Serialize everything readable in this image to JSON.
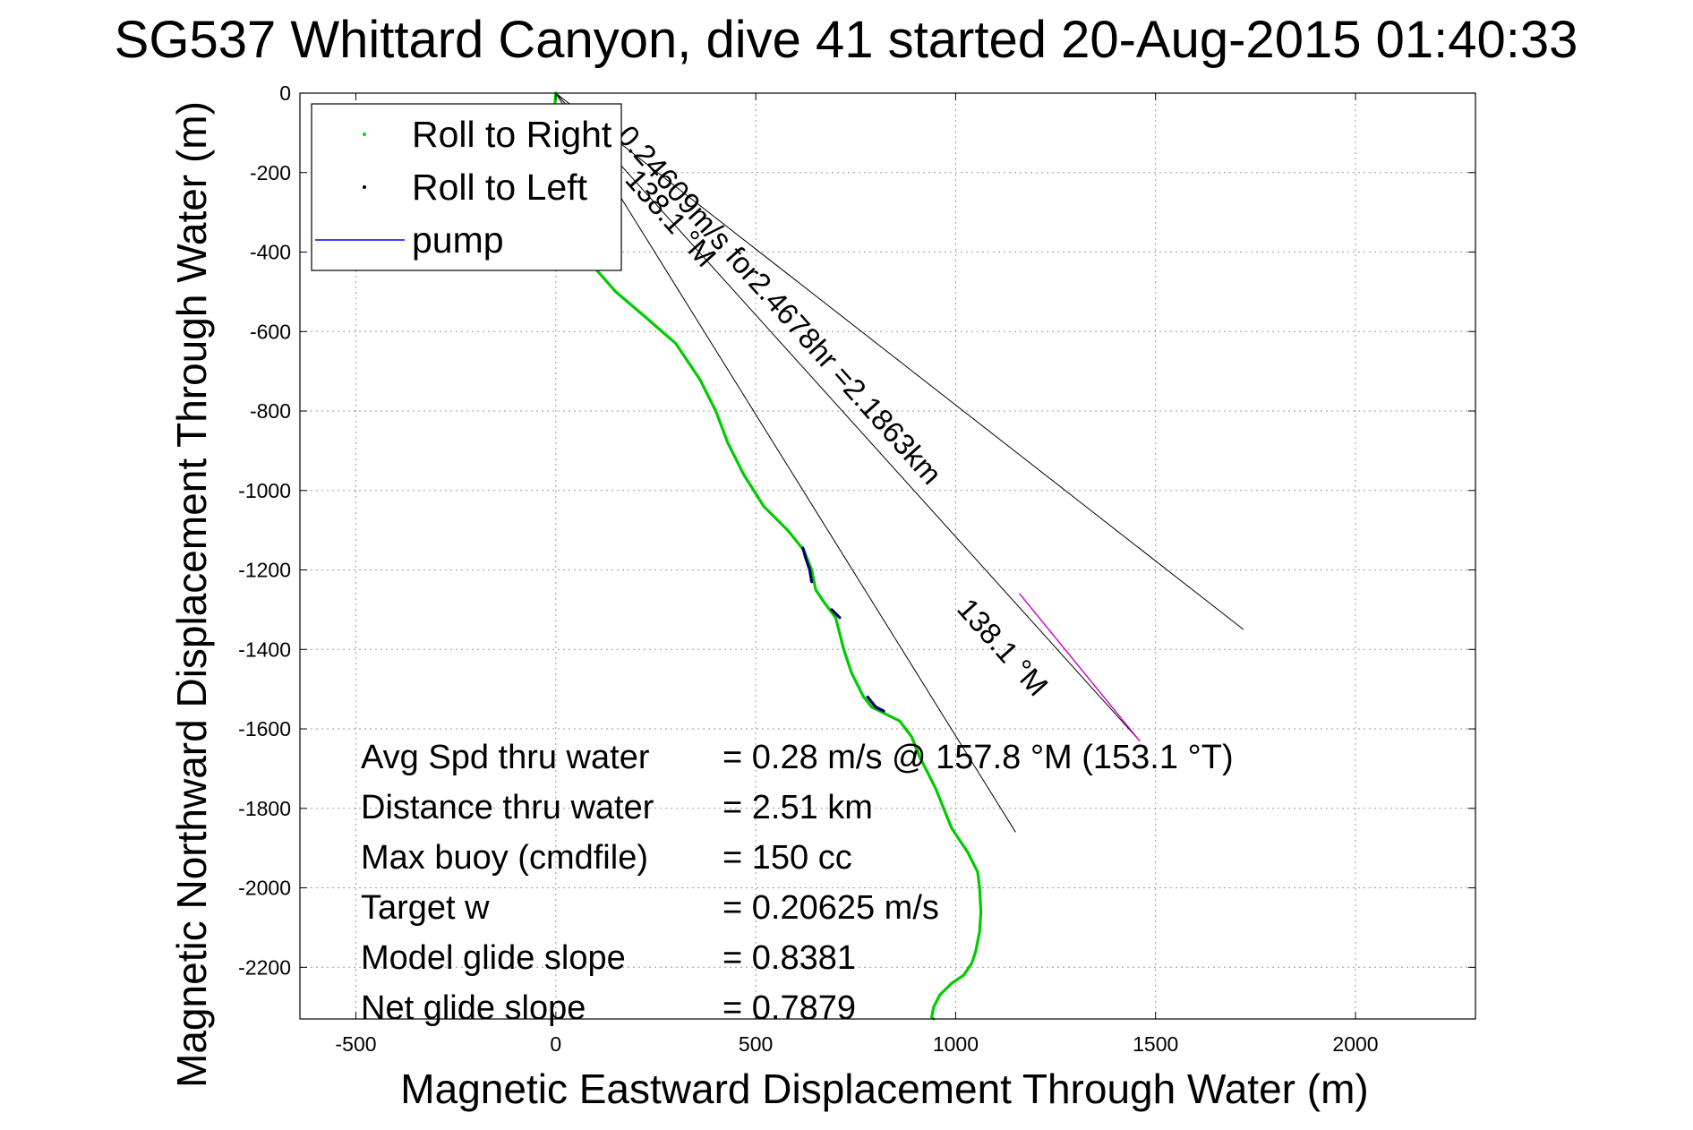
{
  "chart_data": {
    "type": "line",
    "title": "SG537 Whittard Canyon, dive 41 started 20-Aug-2015 01:40:33",
    "xlabel": "Magnetic Eastward Displacement Through Water (m)",
    "ylabel": "Magnetic Northward Displacement Through Water (m)",
    "xlim": [
      -640,
      2300
    ],
    "ylim": [
      -2330,
      0
    ],
    "x_ticks": [
      -500,
      0,
      500,
      1000,
      1500,
      2000
    ],
    "y_ticks": [
      0,
      -200,
      -400,
      -600,
      -800,
      -1000,
      -1200,
      -1400,
      -1600,
      -1800,
      -2000,
      -2200
    ],
    "grid": true,
    "legend": {
      "placement": "top-left",
      "entries": [
        {
          "label": "Roll to Right",
          "color": "#00dd00",
          "marker": "dot"
        },
        {
          "label": "Roll to Left",
          "color": "#000000",
          "marker": "dot"
        },
        {
          "label": "pump",
          "color": "#0000ff",
          "marker": "line"
        }
      ]
    },
    "series": [
      {
        "name": "Roll to Right",
        "color": "#00cc00",
        "x": [
          0,
          -8,
          0,
          35,
          80,
          150,
          220,
          300,
          360,
          400,
          430,
          470,
          520,
          580,
          620,
          640,
          650,
          670,
          700,
          720,
          740,
          770,
          790,
          820,
          860,
          890,
          910,
          950,
          990,
          1030,
          1055,
          1060,
          1063,
          1060,
          1050,
          1040,
          1020,
          990,
          960,
          945,
          940,
          945
        ],
        "y": [
          0,
          -100,
          -200,
          -320,
          -420,
          -500,
          -560,
          -630,
          -720,
          -800,
          -880,
          -960,
          -1040,
          -1100,
          -1150,
          -1200,
          -1250,
          -1280,
          -1320,
          -1400,
          -1460,
          -1520,
          -1545,
          -1560,
          -1580,
          -1620,
          -1670,
          -1750,
          -1850,
          -1910,
          -1960,
          -2000,
          -2060,
          -2110,
          -2160,
          -2190,
          -2220,
          -2240,
          -2270,
          -2300,
          -2325,
          -2330
        ]
      },
      {
        "name": "Roll to Left",
        "color": "#000066",
        "segments": [
          {
            "x": [
              618,
              625,
              635,
              640
            ],
            "y": [
              -1145,
              -1170,
              -1200,
              -1230
            ]
          },
          {
            "x": [
              690,
              700,
              710
            ],
            "y": [
              -1300,
              -1310,
              -1320
            ]
          },
          {
            "x": [
              780,
              800,
              820
            ],
            "y": [
              -1520,
              -1545,
              -1555
            ]
          }
        ]
      },
      {
        "name": "pump",
        "color": "#cc00cc",
        "x": [
          1160,
          1460
        ],
        "y": [
          -1260,
          -1630
        ]
      }
    ],
    "reference_lines": [
      {
        "x": [
          0,
          1720
        ],
        "y": [
          0,
          -1350
        ],
        "color": "#000000"
      },
      {
        "x": [
          0,
          1150
        ],
        "y": [
          0,
          -1860
        ],
        "color": "#000000"
      },
      {
        "x": [
          0,
          1460
        ],
        "y": [
          0,
          -1630
        ],
        "color": "#000000"
      }
    ],
    "annotations": [
      {
        "text": "0.24609m/s for2.4678hr =2.1863km",
        "x": 150,
        "y": -110,
        "rotation": 48.2
      },
      {
        "text": "138.1 °M",
        "x": 170,
        "y": -220,
        "rotation": 48.2
      },
      {
        "text": "138.1 °M",
        "x": 1000,
        "y": -1300,
        "rotation": 48.2
      }
    ],
    "stats": [
      {
        "label": "Avg Spd thru water",
        "value": "=  0.28 m/s @ 157.8 °M (153.1 °T)"
      },
      {
        "label": "Distance thru water",
        "value": "=  2.51 km"
      },
      {
        "label": "Max buoy (cmdfile)",
        "value": "= 150 cc"
      },
      {
        "label": "Target w",
        "value": "= 0.20625 m/s"
      },
      {
        "label": "Model glide slope",
        "value": "= 0.8381"
      },
      {
        "label": "Net glide slope",
        "value": "= 0.7879"
      }
    ]
  }
}
